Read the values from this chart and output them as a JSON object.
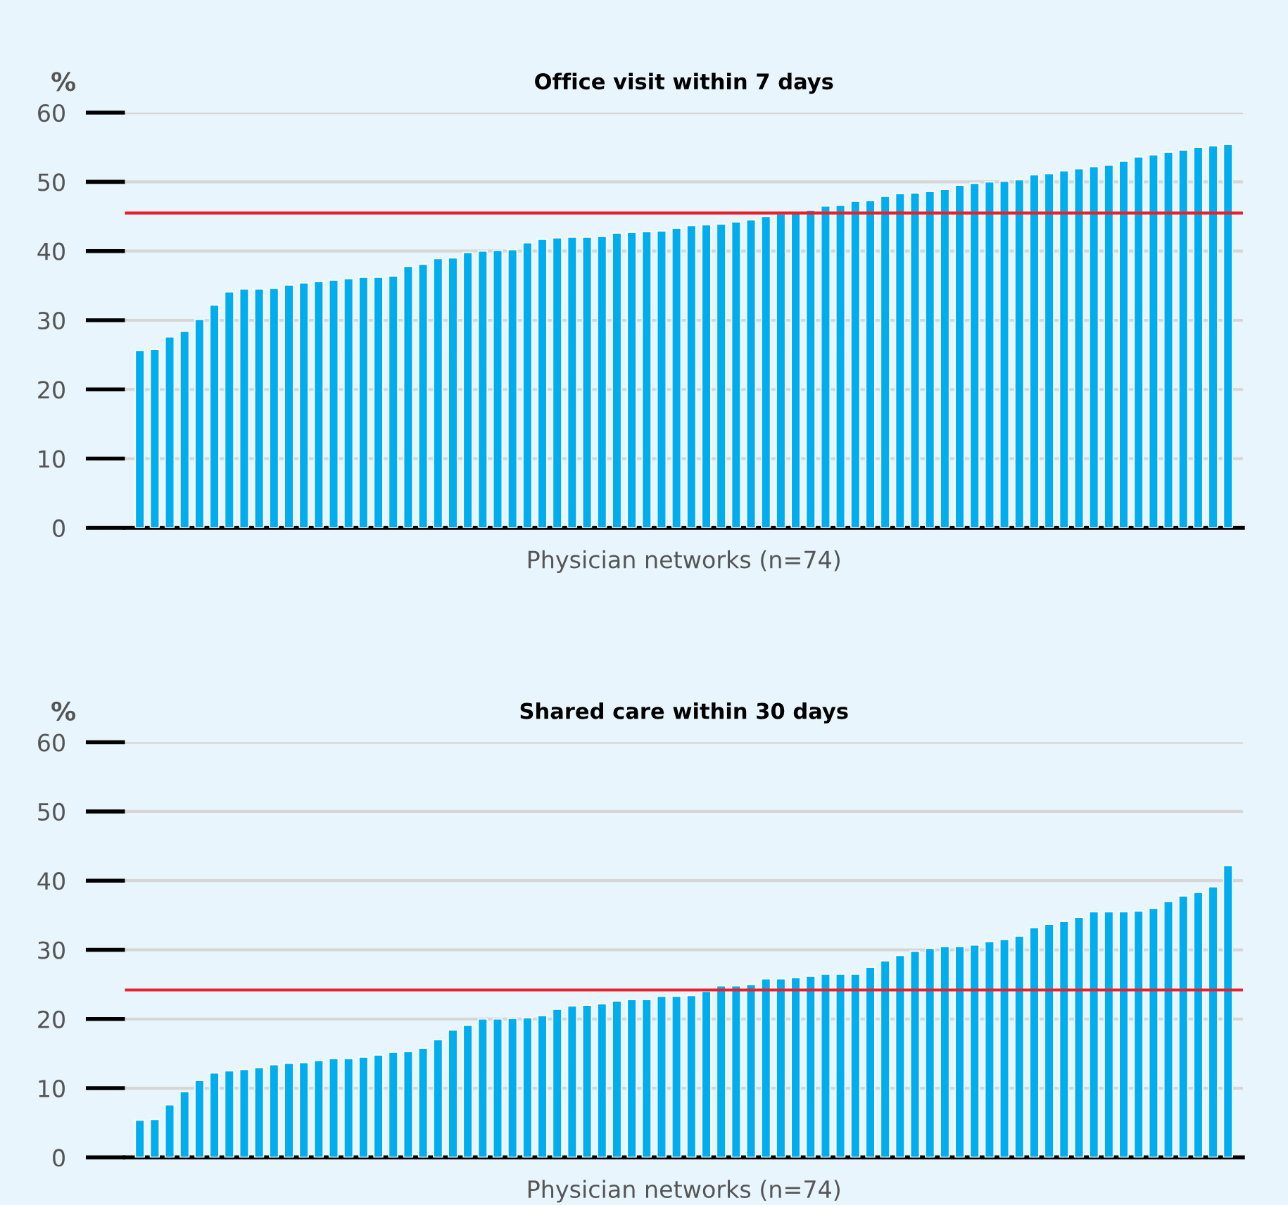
{
  "chart_data": [
    {
      "type": "bar",
      "title": "Office visit within 7 days",
      "ylabel": "%",
      "xlabel": "Physician networks (n=74)",
      "categories": [
        null,
        null,
        null,
        null,
        null,
        null,
        null,
        null,
        null,
        null,
        null,
        null,
        null,
        null,
        null,
        null,
        null,
        null,
        null,
        null,
        null,
        null,
        null,
        null,
        null,
        null,
        null,
        null,
        null,
        null,
        null,
        null,
        null,
        null,
        null,
        null,
        null,
        null,
        null,
        null,
        null,
        null,
        null,
        null,
        null,
        null,
        null,
        null,
        null,
        null,
        null,
        null,
        null,
        null,
        null,
        null,
        null,
        null,
        null,
        null,
        null,
        null,
        null,
        null,
        null,
        null,
        null,
        null,
        null,
        null,
        null,
        null,
        null,
        null
      ],
      "values": [
        25.6,
        25.8,
        27.6,
        28.4,
        30.1,
        32.2,
        34.1,
        34.5,
        34.5,
        34.6,
        35.1,
        35.4,
        35.6,
        35.8,
        36.0,
        36.2,
        36.2,
        36.4,
        37.8,
        38.1,
        38.9,
        39.0,
        39.8,
        40.0,
        40.1,
        40.2,
        41.2,
        41.7,
        41.9,
        42.0,
        42.0,
        42.1,
        42.6,
        42.7,
        42.8,
        42.9,
        43.3,
        43.7,
        43.8,
        43.9,
        44.2,
        44.5,
        45.0,
        45.4,
        45.5,
        45.9,
        46.5,
        46.6,
        47.2,
        47.3,
        47.9,
        48.3,
        48.4,
        48.6,
        48.9,
        49.5,
        49.8,
        50.0,
        50.1,
        50.3,
        51.0,
        51.2,
        51.6,
        51.9,
        52.2,
        52.4,
        53.0,
        53.6,
        53.9,
        54.3,
        54.6,
        55.0,
        55.2,
        55.4
      ],
      "color": "#00aeef",
      "ylim": [
        0,
        60
      ],
      "yticks": [
        0,
        10,
        20,
        30,
        40,
        50,
        60
      ],
      "grid": "y",
      "ref_lines": [
        {
          "axis": "y",
          "value": 45.5,
          "color": "#e8202a"
        }
      ]
    },
    {
      "type": "bar",
      "title": "Shared care within 30 days",
      "ylabel": "%",
      "xlabel": "Physician networks (n=74)",
      "categories": [
        null,
        null,
        null,
        null,
        null,
        null,
        null,
        null,
        null,
        null,
        null,
        null,
        null,
        null,
        null,
        null,
        null,
        null,
        null,
        null,
        null,
        null,
        null,
        null,
        null,
        null,
        null,
        null,
        null,
        null,
        null,
        null,
        null,
        null,
        null,
        null,
        null,
        null,
        null,
        null,
        null,
        null,
        null,
        null,
        null,
        null,
        null,
        null,
        null,
        null,
        null,
        null,
        null,
        null,
        null,
        null,
        null,
        null,
        null,
        null,
        null,
        null,
        null,
        null,
        null,
        null,
        null,
        null,
        null,
        null,
        null,
        null,
        null,
        null
      ],
      "values": [
        5.4,
        5.5,
        7.6,
        9.5,
        11.1,
        12.2,
        12.5,
        12.7,
        13.0,
        13.4,
        13.6,
        13.7,
        14.0,
        14.3,
        14.3,
        14.5,
        14.8,
        15.2,
        15.3,
        15.8,
        17.0,
        18.4,
        19.1,
        20.0,
        20.0,
        20.1,
        20.2,
        20.5,
        21.4,
        21.9,
        22.0,
        22.2,
        22.6,
        22.8,
        22.8,
        23.3,
        23.3,
        23.4,
        24.0,
        24.8,
        24.8,
        25.0,
        25.8,
        25.8,
        26.0,
        26.2,
        26.5,
        26.5,
        26.5,
        27.5,
        28.4,
        29.2,
        29.8,
        30.2,
        30.5,
        30.5,
        30.7,
        31.2,
        31.5,
        32.0,
        33.2,
        33.7,
        34.1,
        34.7,
        35.5,
        35.5,
        35.5,
        35.6,
        36.0,
        37.0,
        37.8,
        38.3,
        39.1,
        42.2
      ],
      "color": "#00aeef",
      "ylim": [
        0,
        60
      ],
      "yticks": [
        0,
        10,
        20,
        30,
        40,
        50,
        60
      ],
      "grid": "y",
      "ref_lines": [
        {
          "axis": "y",
          "value": 24.2,
          "color": "#e8202a"
        }
      ]
    }
  ]
}
